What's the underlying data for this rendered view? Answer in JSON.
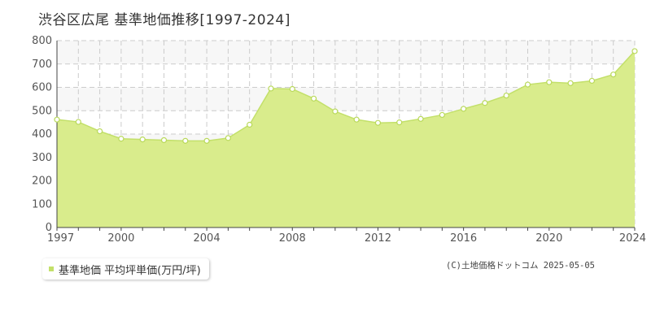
{
  "colors": {
    "area_fill": "#d9ec8c",
    "line": "#c3e06a",
    "point_fill": "#ffffff",
    "point_stroke": "#b9d95a",
    "grid": "#cccccc",
    "band": "#f7f7f7",
    "axis": "#444444"
  },
  "chart_data": {
    "type": "area",
    "title": "渋谷区広尾 基準地価推移[1997-2024]",
    "xlabel": "",
    "ylabel": "",
    "x": [
      1997,
      1998,
      1999,
      2000,
      2001,
      2002,
      2003,
      2004,
      2005,
      2006,
      2007,
      2008,
      2009,
      2010,
      2011,
      2012,
      2013,
      2014,
      2015,
      2016,
      2017,
      2018,
      2019,
      2020,
      2021,
      2022,
      2023,
      2024
    ],
    "series": [
      {
        "name": "基準地価 平均坪単価(万円/坪)",
        "values": [
          462,
          452,
          412,
          380,
          377,
          374,
          371,
          371,
          383,
          440,
          595,
          593,
          552,
          497,
          462,
          448,
          450,
          465,
          482,
          508,
          533,
          565,
          612,
          622,
          618,
          628,
          655,
          755
        ]
      }
    ],
    "xlim": [
      1997,
      2024
    ],
    "ylim": [
      0,
      800
    ],
    "x_ticks": [
      "1997",
      "2000",
      "2004",
      "2008",
      "2012",
      "2016",
      "2020",
      "2024"
    ],
    "y_ticks": [
      "0",
      "100",
      "200",
      "300",
      "400",
      "500",
      "600",
      "700",
      "800"
    ],
    "grid": true,
    "legend_position": "bottom-left"
  },
  "legend": {
    "label": "基準地価 平均坪単価(万円/坪)"
  },
  "credit": "(C)土地価格ドットコム 2025-05-05"
}
